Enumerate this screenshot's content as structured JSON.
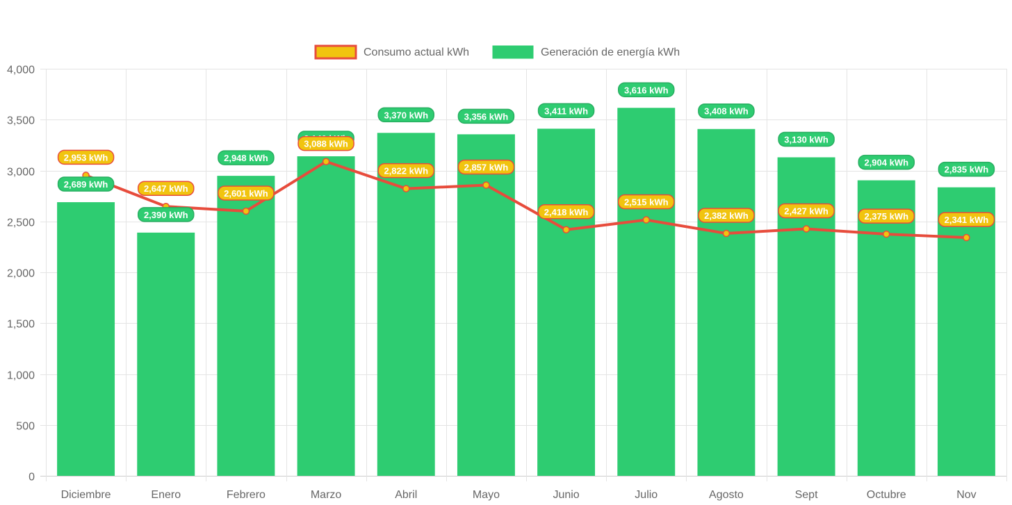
{
  "chart_data": {
    "type": "bar",
    "title": "",
    "xlabel": "",
    "ylabel": "",
    "ylim": [
      0,
      4000
    ],
    "y_ticks": [
      0,
      500,
      1000,
      1500,
      2000,
      2500,
      3000,
      3500,
      4000
    ],
    "y_tick_labels": [
      "0",
      "500",
      "1,000",
      "1,500",
      "2,000",
      "2,500",
      "3,000",
      "3,500",
      "4,000"
    ],
    "grid": true,
    "legend_position": "top-center",
    "categories": [
      "Diciembre",
      "Enero",
      "Febrero",
      "Marzo",
      "Abril",
      "Mayo",
      "Junio",
      "Julio",
      "Agosto",
      "Sept",
      "Octubre",
      "Nov"
    ],
    "series": [
      {
        "name": "Consumo actual kWh",
        "type": "line",
        "line_color": "#e74c3c",
        "point_color": "#f1c40f",
        "label_bg": "#f1c40f",
        "label_border": "#e74c3c",
        "values": [
          2953,
          2647,
          2601,
          3088,
          2822,
          2857,
          2418,
          2515,
          2382,
          2427,
          2375,
          2341
        ],
        "labels": [
          "2,953 kWh",
          "2,647 kWh",
          "2,601 kWh",
          "3,088 kWh",
          "2,822 kWh",
          "2,857 kWh",
          "2,418 kWh",
          "2,515 kWh",
          "2,382 kWh",
          "2,427 kWh",
          "2,375 kWh",
          "2,341 kWh"
        ]
      },
      {
        "name": "Generación de energía kWh",
        "type": "bar",
        "color": "#2ecc71",
        "label_bg": "#2ecc71",
        "label_border": "#27ae60",
        "values": [
          2689,
          2390,
          2948,
          3140,
          3370,
          3356,
          3411,
          3616,
          3408,
          3130,
          2904,
          2835
        ],
        "labels": [
          "2,689 kWh",
          "2,390 kWh",
          "2,948 kWh",
          "3,140 kWh",
          "3,370 kWh",
          "3,356 kWh",
          "3,411 kWh",
          "3,616 kWh",
          "3,408 kWh",
          "3,130 kWh",
          "2,904 kWh",
          "2,835 kWh"
        ]
      }
    ]
  }
}
